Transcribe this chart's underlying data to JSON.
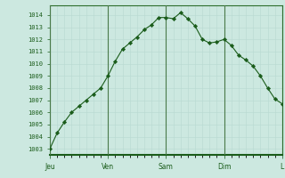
{
  "background_color": "#cce8e0",
  "plot_bg_color": "#cce8e0",
  "line_color": "#1a5c1a",
  "marker_color": "#1a5c1a",
  "grid_color_minor": "#b8d8d0",
  "grid_color_major": "#a0c8c0",
  "axis_color": "#2d6e2d",
  "tick_label_color": "#1a5c1a",
  "day_line_color": "#4a7a4a",
  "ylim": [
    1002.5,
    1014.8
  ],
  "yticks": [
    1003,
    1004,
    1005,
    1006,
    1007,
    1008,
    1009,
    1010,
    1011,
    1012,
    1013,
    1014
  ],
  "day_labels": [
    "Jeu",
    "Ven",
    "Sam",
    "Dim",
    "L"
  ],
  "day_positions": [
    0,
    8,
    16,
    24,
    32
  ],
  "x_values": [
    0,
    1,
    2,
    3,
    4,
    5,
    6,
    7,
    8,
    9,
    10,
    11,
    12,
    13,
    14,
    15,
    16,
    17,
    18,
    19,
    20,
    21,
    22,
    23,
    24,
    25,
    26,
    27,
    28,
    29,
    30,
    31,
    32
  ],
  "y_values": [
    1003.0,
    1004.3,
    1005.2,
    1006.0,
    1006.5,
    1007.0,
    1007.5,
    1008.0,
    1009.0,
    1010.2,
    1011.2,
    1011.7,
    1012.2,
    1012.8,
    1013.2,
    1013.8,
    1013.8,
    1013.7,
    1014.2,
    1013.7,
    1013.1,
    1012.0,
    1011.7,
    1011.8,
    1012.0,
    1011.5,
    1010.7,
    1010.3,
    1009.8,
    1009.0,
    1008.0,
    1007.1,
    1006.7
  ],
  "figsize": [
    3.2,
    2.0
  ],
  "dpi": 100
}
